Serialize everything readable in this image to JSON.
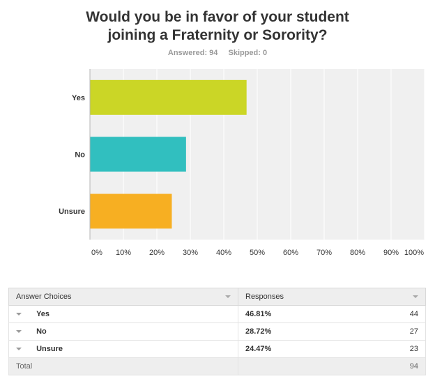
{
  "header": {
    "title_line1": "Would you be in favor of your student",
    "title_line2": "joining a Fraternity or Sorority?",
    "answered": "Answered: 94",
    "skipped": "Skipped: 0"
  },
  "chart_data": {
    "type": "bar",
    "orientation": "horizontal",
    "categories": [
      "Yes",
      "No",
      "Unsure"
    ],
    "values": [
      46.81,
      28.72,
      24.47
    ],
    "colors": [
      "#cbd626",
      "#31bfbf",
      "#f7af22"
    ],
    "xlim": [
      0,
      100
    ],
    "xticks": [
      "0%",
      "10%",
      "20%",
      "30%",
      "40%",
      "50%",
      "60%",
      "70%",
      "80%",
      "90%",
      "100%"
    ],
    "grid": true
  },
  "table": {
    "headers": [
      "Answer Choices",
      "Responses"
    ],
    "rows": [
      {
        "choice": "Yes",
        "percent": "46.81%",
        "count": "44"
      },
      {
        "choice": "No",
        "percent": "28.72%",
        "count": "27"
      },
      {
        "choice": "Unsure",
        "percent": "24.47%",
        "count": "23"
      }
    ],
    "total_label": "Total",
    "total_count": "94"
  }
}
